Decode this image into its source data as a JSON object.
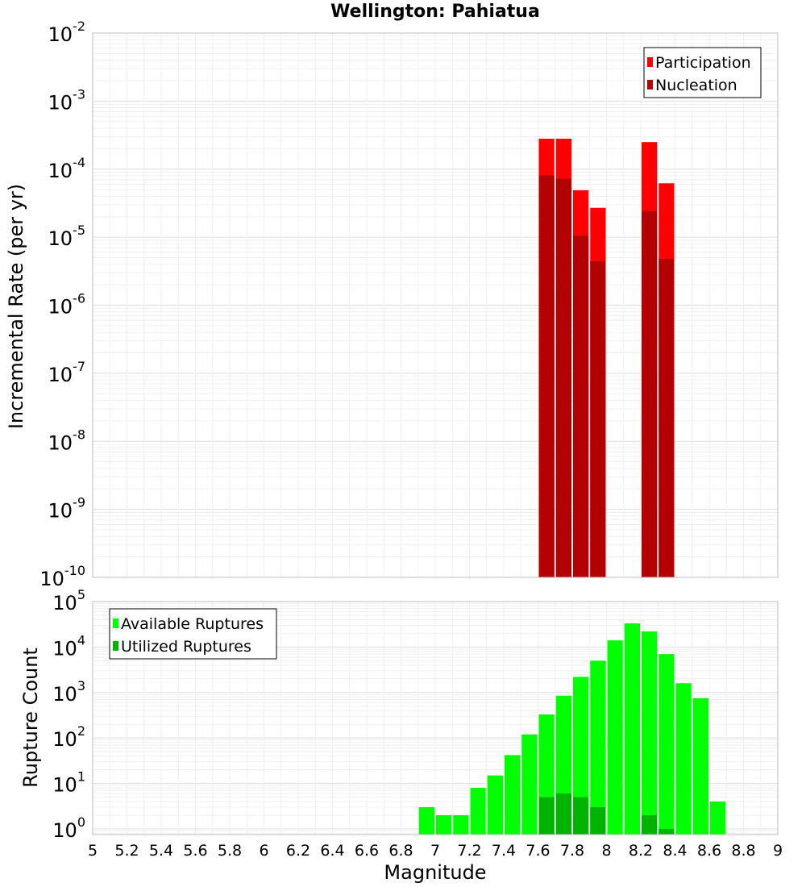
{
  "chart_data": [
    {
      "type": "bar",
      "title": "Wellington: Pahiatua",
      "xlabel": "Magnitude",
      "ylabel": "Incremental Rate (per yr)",
      "yscale": "log",
      "xlim": [
        5,
        9
      ],
      "ylim": [
        1e-10,
        0.01
      ],
      "y_tick_labels": [
        {
          "base": "10",
          "exp": "-10"
        },
        {
          "base": "10",
          "exp": "-9"
        },
        {
          "base": "10",
          "exp": "-8"
        },
        {
          "base": "10",
          "exp": "-7"
        },
        {
          "base": "10",
          "exp": "-6"
        },
        {
          "base": "10",
          "exp": "-5"
        },
        {
          "base": "10",
          "exp": "-4"
        },
        {
          "base": "10",
          "exp": "-3"
        },
        {
          "base": "10",
          "exp": "-2"
        }
      ],
      "legend_position": "top-right",
      "series": [
        {
          "name": "Participation",
          "color": "#ff0000",
          "points": [
            [
              7.65,
              0.00028
            ],
            [
              7.75,
              0.00028
            ],
            [
              7.85,
              4.9e-05
            ],
            [
              7.95,
              2.7e-05
            ],
            [
              8.25,
              0.00025
            ],
            [
              8.35,
              6.2e-05
            ]
          ]
        },
        {
          "name": "Nucleation",
          "color": "#b30000",
          "points": [
            [
              7.65,
              8.1e-05
            ],
            [
              7.75,
              7.2e-05
            ],
            [
              7.85,
              1.05e-05
            ],
            [
              7.95,
              4.4e-06
            ],
            [
              8.25,
              2.4e-05
            ],
            [
              8.35,
              4.8e-06
            ]
          ]
        }
      ]
    },
    {
      "type": "bar",
      "xlabel": "Magnitude",
      "ylabel": "Rupture Count",
      "yscale": "log",
      "xlim": [
        5,
        9
      ],
      "ylim": [
        0.75,
        100000.0
      ],
      "y_tick_labels": [
        {
          "base": "10",
          "exp": "0",
          "value": 1
        },
        {
          "base": "10",
          "exp": "1",
          "value": 10
        },
        {
          "base": "10",
          "exp": "2",
          "value": 100
        },
        {
          "base": "10",
          "exp": "3",
          "value": 1000
        },
        {
          "base": "10",
          "exp": "4",
          "value": 10000
        },
        {
          "base": "10",
          "exp": "5",
          "value": 100000
        }
      ],
      "x_tick_labels": [
        "5",
        "5.2",
        "5.4",
        "5.6",
        "5.8",
        "6",
        "6.2",
        "6.4",
        "6.6",
        "6.8",
        "7",
        "7.2",
        "7.4",
        "7.6",
        "7.8",
        "8",
        "8.2",
        "8.4",
        "8.6",
        "8.8",
        "9"
      ],
      "legend_position": "top-left",
      "series": [
        {
          "name": "Available Ruptures",
          "color": "#00ff00",
          "points": [
            [
              6.95,
              3
            ],
            [
              7.05,
              2
            ],
            [
              7.15,
              2
            ],
            [
              7.25,
              8
            ],
            [
              7.35,
              15
            ],
            [
              7.45,
              42
            ],
            [
              7.55,
              120
            ],
            [
              7.65,
              330
            ],
            [
              7.75,
              850
            ],
            [
              7.85,
              2200
            ],
            [
              7.95,
              5000
            ],
            [
              8.05,
              14000
            ],
            [
              8.15,
              33000
            ],
            [
              8.25,
              22000
            ],
            [
              8.35,
              7000
            ],
            [
              8.45,
              1600
            ],
            [
              8.55,
              750
            ],
            [
              8.65,
              4
            ]
          ]
        },
        {
          "name": "Utilized Ruptures",
          "color": "#00b300",
          "points": [
            [
              7.65,
              5
            ],
            [
              7.75,
              6
            ],
            [
              7.85,
              5
            ],
            [
              7.95,
              3
            ],
            [
              8.25,
              2
            ],
            [
              8.35,
              1
            ]
          ]
        }
      ]
    }
  ]
}
